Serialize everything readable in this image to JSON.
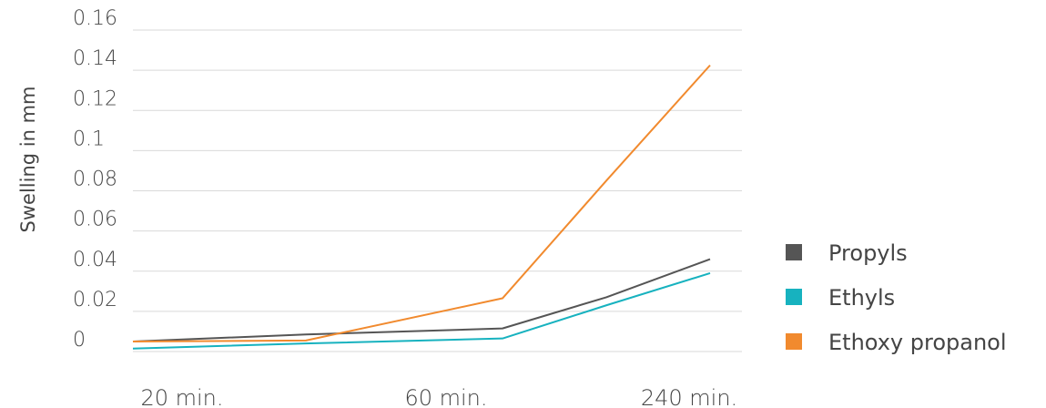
{
  "chart_data": {
    "type": "line",
    "ylabel": "Swelling in mm",
    "ylim": [
      0,
      0.16
    ],
    "yticks": [
      "0",
      "0.02",
      "0.04",
      "0.06",
      "0.08",
      "0.1",
      "0.12",
      "0.14",
      "0.16"
    ],
    "x_tick_labels": [
      "20 min.",
      "60 min.",
      "240 min."
    ],
    "x": [
      0,
      1,
      2,
      3,
      4
    ],
    "grid": true,
    "legend_position": "right",
    "series": [
      {
        "name": "Propyls",
        "color": "#555555",
        "values": [
          0.005,
          0.0085,
          0.0115,
          0.027,
          0.046
        ]
      },
      {
        "name": "Ethyls",
        "color": "#17b2bf",
        "values": [
          0.0015,
          0.004,
          0.0065,
          0.023,
          0.039
        ]
      },
      {
        "name": "Ethoxy propanol",
        "color": "#f18a2e",
        "values": [
          0.005,
          0.0055,
          0.0265,
          0.085,
          0.1425
        ]
      }
    ]
  }
}
